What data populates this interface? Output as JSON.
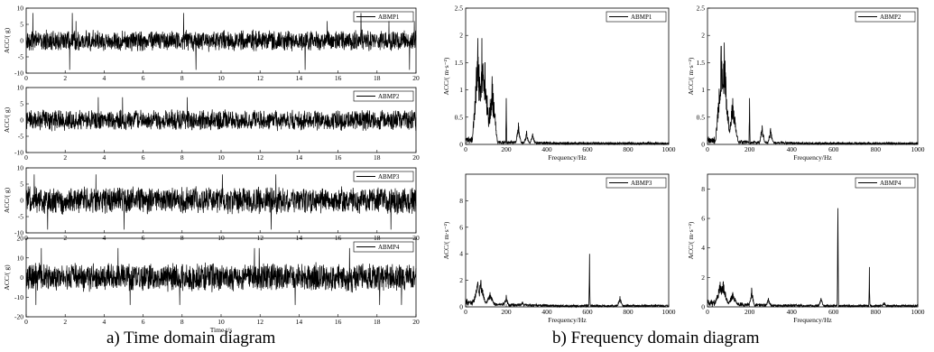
{
  "captions": {
    "a": "a) Time domain diagram",
    "b": "b) Frequency domain diagram"
  },
  "chart_data": [
    {
      "type": "line",
      "series": [
        {
          "name": "ABMP1"
        }
      ],
      "ylabel": "ACC/( g)",
      "xlabel": "",
      "xlim": [
        0,
        20
      ],
      "ylim": [
        -10,
        10
      ],
      "xticks": [
        0,
        2,
        4,
        6,
        8,
        10,
        12,
        14,
        16,
        18,
        20
      ],
      "yticks": [
        -10,
        -5,
        0,
        5,
        10
      ],
      "signal": {
        "amplitude": 3.5,
        "peaks": [
          6,
          8.5,
          -9
        ]
      }
    },
    {
      "type": "line",
      "series": [
        {
          "name": "ABMP2"
        }
      ],
      "ylabel": "ACC/( g)",
      "xlabel": "",
      "xlim": [
        0,
        20
      ],
      "ylim": [
        -10,
        10
      ],
      "xticks": [
        0,
        2,
        4,
        6,
        8,
        10,
        12,
        14,
        16,
        18,
        20
      ],
      "yticks": [
        -10,
        -5,
        0,
        5,
        10
      ],
      "signal": {
        "amplitude": 3.5,
        "peaks": [
          7,
          -9
        ]
      }
    },
    {
      "type": "line",
      "series": [
        {
          "name": "ABMP3"
        }
      ],
      "ylabel": "ACC/( g)",
      "xlabel": "",
      "xlim": [
        0,
        20
      ],
      "ylim": [
        -10,
        10
      ],
      "xticks": [
        0,
        2,
        4,
        6,
        8,
        10,
        12,
        14,
        16,
        18,
        20
      ],
      "yticks": [
        -10,
        -5,
        0,
        5,
        10
      ],
      "signal": {
        "amplitude": 4.5,
        "peaks": [
          8,
          -9
        ]
      }
    },
    {
      "type": "line",
      "series": [
        {
          "name": "ABMP4"
        }
      ],
      "ylabel": "ACC/( g)",
      "xlabel": "Time t/s",
      "xlim": [
        0,
        20
      ],
      "ylim": [
        -20,
        20
      ],
      "xticks": [
        0,
        2,
        4,
        6,
        8,
        10,
        12,
        14,
        16,
        18,
        20
      ],
      "yticks": [
        -20,
        -10,
        0,
        10,
        20
      ],
      "signal": {
        "amplitude": 8,
        "peaks": [
          15,
          -14
        ]
      }
    },
    {
      "type": "line",
      "series": [
        {
          "name": "ABMP1"
        }
      ],
      "ylabel": "ACC/( m·s⁻²)",
      "xlabel": "Frequency/Hz",
      "xlim": [
        0,
        1000
      ],
      "ylim": [
        0,
        2.5
      ],
      "xticks": [
        0,
        200,
        400,
        600,
        800,
        1000
      ],
      "yticks": [
        0,
        0.5,
        1,
        1.5,
        2,
        2.5
      ],
      "peaks": [
        [
          60,
          1.95
        ],
        [
          80,
          1.95
        ],
        [
          95,
          1.5
        ],
        [
          130,
          1.25
        ],
        [
          200,
          0.85
        ],
        [
          260,
          0.4
        ],
        [
          300,
          0.25
        ],
        [
          330,
          0.2
        ]
      ]
    },
    {
      "type": "line",
      "series": [
        {
          "name": "ABMP2"
        }
      ],
      "ylabel": "ACC/( m·s⁻²)",
      "xlabel": "Frequency/Hz",
      "xlim": [
        0,
        1000
      ],
      "ylim": [
        0,
        2.5
      ],
      "xticks": [
        0,
        200,
        400,
        600,
        800,
        1000
      ],
      "yticks": [
        0,
        0.5,
        1,
        1.5,
        2,
        2.5
      ],
      "peaks": [
        [
          65,
          1.8
        ],
        [
          80,
          1.87
        ],
        [
          120,
          0.85
        ],
        [
          200,
          0.85
        ],
        [
          260,
          0.35
        ],
        [
          300,
          0.3
        ]
      ]
    },
    {
      "type": "line",
      "series": [
        {
          "name": "ABMP3"
        }
      ],
      "ylabel": "ACC/( m·s⁻²)",
      "xlabel": "Frequency/Hz",
      "xlim": [
        0,
        1000
      ],
      "ylim": [
        0,
        10
      ],
      "xticks": [
        0,
        200,
        400,
        600,
        800,
        1000
      ],
      "yticks": [
        0,
        2,
        4,
        6,
        8
      ],
      "peaks": [
        [
          60,
          1.9
        ],
        [
          75,
          2.0
        ],
        [
          120,
          1.1
        ],
        [
          200,
          0.9
        ],
        [
          280,
          0.4
        ],
        [
          610,
          4.0
        ],
        [
          760,
          0.8
        ]
      ]
    },
    {
      "type": "line",
      "series": [
        {
          "name": "ABMP4"
        }
      ],
      "ylabel": "ACC/( m·s⁻²)",
      "xlabel": "Frequency/Hz",
      "xlim": [
        0,
        1000
      ],
      "ylim": [
        0,
        9
      ],
      "xticks": [
        0,
        200,
        400,
        600,
        800,
        1000
      ],
      "yticks": [
        0,
        2,
        4,
        6,
        8
      ],
      "peaks": [
        [
          60,
          1.7
        ],
        [
          75,
          1.7
        ],
        [
          120,
          1.0
        ],
        [
          210,
          1.3
        ],
        [
          290,
          0.6
        ],
        [
          540,
          0.6
        ],
        [
          620,
          6.7
        ],
        [
          770,
          2.7
        ],
        [
          840,
          0.3
        ]
      ]
    }
  ]
}
